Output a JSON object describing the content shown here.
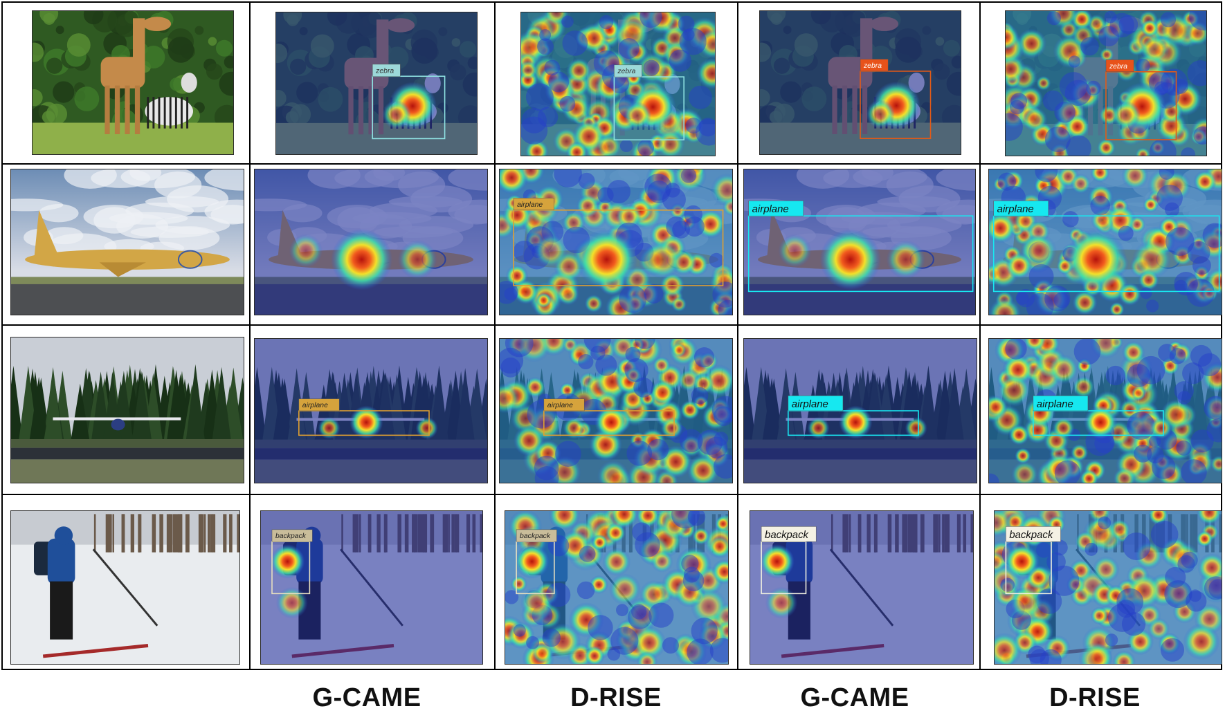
{
  "columns": [
    "",
    "G-CAME",
    "D-RISE",
    "G-CAME",
    "D-RISE"
  ],
  "rows": [
    {
      "label": "zebra",
      "cells": [
        {
          "type": "original",
          "scene": "giraffe-zebra"
        },
        {
          "type": "heatmap",
          "method": "G-CAME",
          "label": "zebra",
          "box_color": "#8fe3e3",
          "tag_bg": "#9cd9d9",
          "tag_fg": "#333333"
        },
        {
          "type": "heatmap",
          "method": "D-RISE",
          "label": "zebra",
          "box_color": "#8fe3e3",
          "tag_bg": "#9cd9d9",
          "tag_fg": "#333333"
        },
        {
          "type": "heatmap",
          "method": "G-CAME",
          "label": "zebra",
          "box_color": "#e25a17",
          "tag_bg": "#e8521a",
          "tag_fg": "#ffffff"
        },
        {
          "type": "heatmap",
          "method": "D-RISE",
          "label": "zebra",
          "box_color": "#e25a17",
          "tag_bg": "#e8521a",
          "tag_fg": "#ffffff"
        }
      ]
    },
    {
      "label": "airplane",
      "cells": [
        {
          "type": "original",
          "scene": "airliner"
        },
        {
          "type": "heatmap",
          "method": "G-CAME",
          "label": "",
          "box_color": "",
          "tag_bg": "",
          "tag_fg": ""
        },
        {
          "type": "heatmap",
          "method": "D-RISE",
          "label": "airplane",
          "box_color": "#e0a030",
          "tag_bg": "#d6a33c",
          "tag_fg": "#222222"
        },
        {
          "type": "heatmap",
          "method": "G-CAME",
          "label": "airplane",
          "box_color": "#19e6f0",
          "tag_bg": "#16e8f0",
          "tag_fg": "#111111"
        },
        {
          "type": "heatmap",
          "method": "D-RISE",
          "label": "airplane",
          "box_color": "#19e6f0",
          "tag_bg": "#16e8f0",
          "tag_fg": "#111111"
        }
      ]
    },
    {
      "label": "airplane",
      "cells": [
        {
          "type": "original",
          "scene": "small-plane"
        },
        {
          "type": "heatmap",
          "method": "G-CAME",
          "label": "airplane",
          "box_color": "#e0a030",
          "tag_bg": "#d6a33c",
          "tag_fg": "#222222"
        },
        {
          "type": "heatmap",
          "method": "D-RISE",
          "label": "airplane",
          "box_color": "#e0a030",
          "tag_bg": "#d6a33c",
          "tag_fg": "#222222"
        },
        {
          "type": "heatmap",
          "method": "G-CAME",
          "label": "airplane",
          "box_color": "#19e6f0",
          "tag_bg": "#16e8f0",
          "tag_fg": "#111111"
        },
        {
          "type": "heatmap",
          "method": "D-RISE",
          "label": "airplane",
          "box_color": "#19e6f0",
          "tag_bg": "#16e8f0",
          "tag_fg": "#111111"
        }
      ]
    },
    {
      "label": "backpack",
      "cells": [
        {
          "type": "original",
          "scene": "skier"
        },
        {
          "type": "heatmap",
          "method": "G-CAME",
          "label": "backpack",
          "box_color": "#e8e0c0",
          "tag_bg": "#c9bd9a",
          "tag_fg": "#222222"
        },
        {
          "type": "heatmap",
          "method": "D-RISE",
          "label": "backpack",
          "box_color": "#e8e0c0",
          "tag_bg": "#c9bd9a",
          "tag_fg": "#222222"
        },
        {
          "type": "heatmap",
          "method": "G-CAME",
          "label": "backpack",
          "box_color": "#f0f0e0",
          "tag_bg": "#f4f1e4",
          "tag_fg": "#111111"
        },
        {
          "type": "heatmap",
          "method": "D-RISE",
          "label": "backpack",
          "box_color": "#f0f0e0",
          "tag_bg": "#f4f1e4",
          "tag_fg": "#111111"
        }
      ]
    }
  ]
}
